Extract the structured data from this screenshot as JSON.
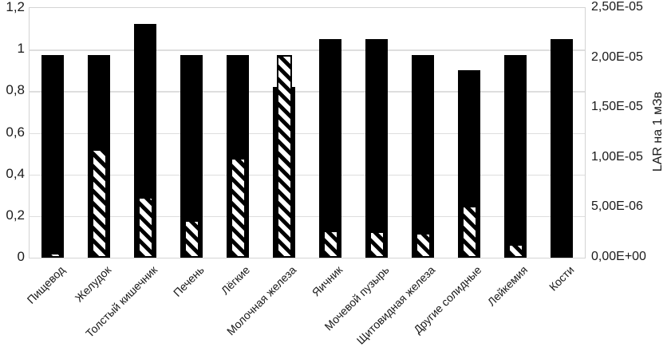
{
  "chart_data": {
    "type": "bar",
    "title": "",
    "legend": "none",
    "grid": true,
    "categories": [
      "Пищевод",
      "Желудок",
      "Толстый кишечник",
      "Печень",
      "Лёгкие",
      "Молочная железа",
      "Яичник",
      "Мочевой пузырь",
      "Щитовидная железа",
      "Другие солидные",
      "Лейкемия",
      "Кости"
    ],
    "series": [
      {
        "name": "solid-black-bars",
        "fill": "solid",
        "color": "#000000",
        "axis": "left",
        "values": [
          0.975,
          0.975,
          1.125,
          0.975,
          0.975,
          0.82,
          1.05,
          1.05,
          0.975,
          0.9,
          0.975,
          1.05
        ]
      },
      {
        "name": "diagonal-hatched-bars",
        "fill": "diagonal-hatch",
        "color": "#000000",
        "axis": "left",
        "values": [
          0.025,
          0.52,
          0.29,
          0.18,
          0.48,
          0.975,
          0.13,
          0.125,
          0.12,
          0.25,
          0.065,
          0
        ]
      }
    ],
    "left_axis": {
      "min": 0,
      "max": 1.2,
      "ticks": [
        {
          "label": "0",
          "value": 0
        },
        {
          "label": "0,2",
          "value": 0.2
        },
        {
          "label": "0,4",
          "value": 0.4
        },
        {
          "label": "0,6",
          "value": 0.6
        },
        {
          "label": "0,8",
          "value": 0.8
        },
        {
          "label": "1",
          "value": 1
        },
        {
          "label": "1,2",
          "value": 1.2
        }
      ]
    },
    "right_axis": {
      "title": "LAR на 1 мЗв",
      "min": 0,
      "max": 2.5e-05,
      "ticks": [
        {
          "label": "0,00E+00",
          "value": 0
        },
        {
          "label": "5,00E-06",
          "value": 5e-06
        },
        {
          "label": "1,00E-05",
          "value": 1e-05
        },
        {
          "label": "1,50E-05",
          "value": 1.5e-05
        },
        {
          "label": "2,00E-05",
          "value": 2e-05
        },
        {
          "label": "2,50E-05",
          "value": 2.5e-05
        }
      ]
    }
  },
  "colors": {
    "bar": "#000000",
    "gridline": "#dedede",
    "plot_border": "#d4d4d4",
    "text": "#1a1a1a",
    "background": "#ffffff"
  }
}
